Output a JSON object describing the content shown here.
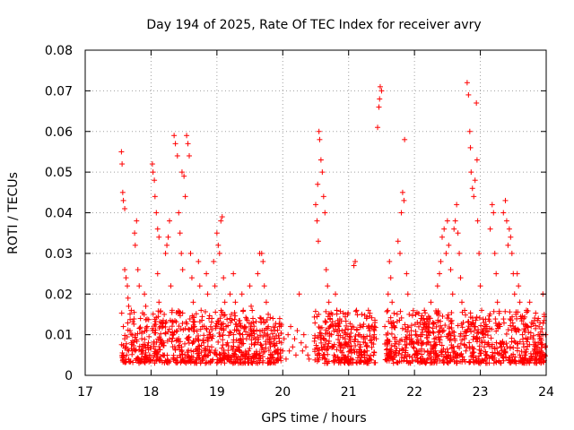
{
  "chart_data": {
    "type": "scatter",
    "title": "Day 194 of 2025, Rate Of TEC Index for receiver avry",
    "xlabel": "GPS time / hours",
    "ylabel": "ROTI / TECUs",
    "xlim": [
      17,
      24
    ],
    "ylim": [
      0,
      0.08
    ],
    "x_ticks": [
      17,
      18,
      19,
      20,
      21,
      22,
      23,
      24
    ],
    "y_ticks": [
      0,
      0.01,
      0.02,
      0.03,
      0.04,
      0.05,
      0.06,
      0.07,
      0.08
    ],
    "x_tick_labels": [
      "17",
      "18",
      "19",
      "20",
      "21",
      "22",
      "23",
      "24"
    ],
    "y_tick_labels": [
      "0",
      "0.01",
      "0.02",
      "0.03",
      "0.04",
      "0.05",
      "0.06",
      "0.07",
      "0.08"
    ],
    "grid": true,
    "marker": "plus",
    "marker_color": "#ff0000",
    "series": [
      {
        "name": "ROTI",
        "points": [
          [
            17.55,
            0.055
          ],
          [
            17.56,
            0.052
          ],
          [
            17.57,
            0.045
          ],
          [
            17.58,
            0.043
          ],
          [
            17.6,
            0.041
          ],
          [
            17.6,
            0.026
          ],
          [
            17.62,
            0.024
          ],
          [
            17.64,
            0.022
          ],
          [
            17.65,
            0.019
          ],
          [
            17.66,
            0.017
          ],
          [
            17.7,
            0.016
          ],
          [
            17.58,
            0.012
          ],
          [
            17.6,
            0.009
          ],
          [
            17.62,
            0.007
          ],
          [
            17.63,
            0.005
          ],
          [
            17.66,
            0.004
          ],
          [
            17.68,
            0.011
          ],
          [
            17.7,
            0.008
          ],
          [
            17.72,
            0.006
          ],
          [
            17.75,
            0.035
          ],
          [
            17.76,
            0.032
          ],
          [
            17.78,
            0.038
          ],
          [
            17.8,
            0.026
          ],
          [
            17.82,
            0.022
          ],
          [
            17.84,
            0.014
          ],
          [
            17.86,
            0.009
          ],
          [
            17.88,
            0.006
          ],
          [
            17.9,
            0.02
          ],
          [
            17.92,
            0.017
          ],
          [
            17.94,
            0.012
          ],
          [
            17.96,
            0.008
          ],
          [
            17.98,
            0.005
          ],
          [
            18.02,
            0.052
          ],
          [
            18.03,
            0.05
          ],
          [
            18.05,
            0.048
          ],
          [
            18.06,
            0.044
          ],
          [
            18.08,
            0.04
          ],
          [
            18.1,
            0.036
          ],
          [
            18.12,
            0.034
          ],
          [
            18.1,
            0.025
          ],
          [
            18.12,
            0.018
          ],
          [
            18.14,
            0.012
          ],
          [
            18.16,
            0.008
          ],
          [
            18.18,
            0.005
          ],
          [
            18.2,
            0.015
          ],
          [
            18.22,
            0.03
          ],
          [
            18.24,
            0.032
          ],
          [
            18.26,
            0.034
          ],
          [
            18.28,
            0.038
          ],
          [
            18.3,
            0.022
          ],
          [
            18.32,
            0.016
          ],
          [
            18.34,
            0.01
          ],
          [
            18.36,
            0.007
          ],
          [
            18.35,
            0.059
          ],
          [
            18.37,
            0.057
          ],
          [
            18.4,
            0.054
          ],
          [
            18.42,
            0.04
          ],
          [
            18.44,
            0.035
          ],
          [
            18.46,
            0.03
          ],
          [
            18.48,
            0.026
          ],
          [
            18.47,
            0.05
          ],
          [
            18.5,
            0.049
          ],
          [
            18.52,
            0.044
          ],
          [
            18.54,
            0.059
          ],
          [
            18.56,
            0.057
          ],
          [
            18.58,
            0.054
          ],
          [
            18.6,
            0.03
          ],
          [
            18.62,
            0.024
          ],
          [
            18.64,
            0.018
          ],
          [
            18.66,
            0.012
          ],
          [
            18.68,
            0.009
          ],
          [
            18.7,
            0.006
          ],
          [
            18.72,
            0.028
          ],
          [
            18.74,
            0.022
          ],
          [
            18.76,
            0.016
          ],
          [
            18.78,
            0.012
          ],
          [
            18.8,
            0.008
          ],
          [
            18.82,
            0.005
          ],
          [
            18.84,
            0.025
          ],
          [
            18.86,
            0.02
          ],
          [
            18.88,
            0.014
          ],
          [
            18.9,
            0.01
          ],
          [
            18.92,
            0.007
          ],
          [
            18.95,
            0.028
          ],
          [
            18.97,
            0.022
          ],
          [
            19.0,
            0.035
          ],
          [
            19.02,
            0.032
          ],
          [
            19.04,
            0.03
          ],
          [
            19.06,
            0.038
          ],
          [
            19.08,
            0.039
          ],
          [
            19.1,
            0.024
          ],
          [
            19.12,
            0.018
          ],
          [
            19.14,
            0.012
          ],
          [
            19.16,
            0.008
          ],
          [
            19.18,
            0.005
          ],
          [
            19.2,
            0.02
          ],
          [
            19.22,
            0.015
          ],
          [
            19.25,
            0.025
          ],
          [
            19.28,
            0.018
          ],
          [
            19.3,
            0.011
          ],
          [
            19.32,
            0.007
          ],
          [
            19.35,
            0.004
          ],
          [
            19.38,
            0.02
          ],
          [
            19.4,
            0.016
          ],
          [
            19.42,
            0.012
          ],
          [
            19.45,
            0.009
          ],
          [
            19.48,
            0.006
          ],
          [
            19.5,
            0.022
          ],
          [
            19.52,
            0.017
          ],
          [
            19.55,
            0.013
          ],
          [
            19.58,
            0.008
          ],
          [
            19.6,
            0.005
          ],
          [
            19.62,
            0.025
          ],
          [
            19.65,
            0.03
          ],
          [
            19.68,
            0.03
          ],
          [
            19.7,
            0.028
          ],
          [
            19.72,
            0.022
          ],
          [
            19.75,
            0.018
          ],
          [
            19.78,
            0.012
          ],
          [
            19.8,
            0.008
          ],
          [
            19.82,
            0.005
          ],
          [
            19.85,
            0.014
          ],
          [
            19.88,
            0.009
          ],
          [
            19.9,
            0.006
          ],
          [
            19.92,
            0.004
          ],
          [
            19.95,
            0.012
          ],
          [
            19.98,
            0.008
          ],
          [
            20.0,
            0.006
          ],
          [
            20.02,
            0.009
          ],
          [
            20.05,
            0.004
          ],
          [
            20.08,
            0.01
          ],
          [
            20.1,
            0.006
          ],
          [
            20.12,
            0.012
          ],
          [
            20.15,
            0.007
          ],
          [
            20.18,
            0.009
          ],
          [
            20.2,
            0.005
          ],
          [
            20.22,
            0.011
          ],
          [
            20.25,
            0.02
          ],
          [
            20.28,
            0.008
          ],
          [
            20.3,
            0.006
          ],
          [
            20.32,
            0.01
          ],
          [
            20.35,
            0.007
          ],
          [
            20.38,
            0.005
          ],
          [
            20.4,
            0.004
          ],
          [
            20.5,
            0.042
          ],
          [
            20.52,
            0.038
          ],
          [
            20.53,
            0.047
          ],
          [
            20.54,
            0.033
          ],
          [
            20.55,
            0.06
          ],
          [
            20.56,
            0.058
          ],
          [
            20.58,
            0.053
          ],
          [
            20.6,
            0.05
          ],
          [
            20.62,
            0.044
          ],
          [
            20.64,
            0.04
          ],
          [
            20.66,
            0.026
          ],
          [
            20.68,
            0.022
          ],
          [
            20.7,
            0.018
          ],
          [
            20.72,
            0.014
          ],
          [
            20.74,
            0.01
          ],
          [
            20.76,
            0.007
          ],
          [
            20.78,
            0.005
          ],
          [
            20.8,
            0.02
          ],
          [
            20.82,
            0.016
          ],
          [
            20.84,
            0.012
          ],
          [
            20.86,
            0.008
          ],
          [
            20.88,
            0.006
          ],
          [
            20.9,
            0.004
          ],
          [
            20.95,
            0.015
          ],
          [
            20.98,
            0.01
          ],
          [
            21.0,
            0.008
          ],
          [
            21.02,
            0.006
          ],
          [
            21.05,
            0.012
          ],
          [
            21.08,
            0.027
          ],
          [
            21.1,
            0.028
          ],
          [
            21.12,
            0.016
          ],
          [
            21.15,
            0.01
          ],
          [
            21.18,
            0.007
          ],
          [
            21.2,
            0.005
          ],
          [
            21.22,
            0.012
          ],
          [
            21.25,
            0.009
          ],
          [
            21.28,
            0.006
          ],
          [
            21.3,
            0.016
          ],
          [
            21.32,
            0.011
          ],
          [
            21.35,
            0.008
          ],
          [
            21.38,
            0.005
          ],
          [
            21.4,
            0.013
          ],
          [
            21.42,
            0.009
          ],
          [
            21.44,
            0.061
          ],
          [
            21.46,
            0.066
          ],
          [
            21.47,
            0.068
          ],
          [
            21.48,
            0.071
          ],
          [
            21.5,
            0.07
          ],
          [
            21.55,
            0.012
          ],
          [
            21.58,
            0.008
          ],
          [
            21.6,
            0.02
          ],
          [
            21.62,
            0.028
          ],
          [
            21.64,
            0.024
          ],
          [
            21.66,
            0.018
          ],
          [
            21.68,
            0.013
          ],
          [
            21.7,
            0.009
          ],
          [
            21.72,
            0.006
          ],
          [
            21.75,
            0.033
          ],
          [
            21.78,
            0.03
          ],
          [
            21.8,
            0.04
          ],
          [
            21.82,
            0.045
          ],
          [
            21.84,
            0.043
          ],
          [
            21.85,
            0.058
          ],
          [
            21.88,
            0.025
          ],
          [
            21.9,
            0.02
          ],
          [
            21.92,
            0.015
          ],
          [
            21.95,
            0.011
          ],
          [
            21.98,
            0.007
          ],
          [
            22.0,
            0.005
          ],
          [
            22.02,
            0.01
          ],
          [
            22.05,
            0.008
          ],
          [
            22.08,
            0.006
          ],
          [
            22.1,
            0.014
          ],
          [
            22.12,
            0.01
          ],
          [
            22.15,
            0.016
          ],
          [
            22.18,
            0.012
          ],
          [
            22.2,
            0.008
          ],
          [
            22.22,
            0.005
          ],
          [
            22.25,
            0.018
          ],
          [
            22.28,
            0.013
          ],
          [
            22.3,
            0.009
          ],
          [
            22.32,
            0.006
          ],
          [
            22.35,
            0.022
          ],
          [
            22.38,
            0.025
          ],
          [
            22.4,
            0.028
          ],
          [
            22.42,
            0.034
          ],
          [
            22.45,
            0.036
          ],
          [
            22.48,
            0.03
          ],
          [
            22.5,
            0.038
          ],
          [
            22.52,
            0.032
          ],
          [
            22.55,
            0.026
          ],
          [
            22.58,
            0.02
          ],
          [
            22.6,
            0.036
          ],
          [
            22.62,
            0.038
          ],
          [
            22.64,
            0.042
          ],
          [
            22.66,
            0.035
          ],
          [
            22.68,
            0.03
          ],
          [
            22.7,
            0.024
          ],
          [
            22.72,
            0.018
          ],
          [
            22.74,
            0.013
          ],
          [
            22.76,
            0.009
          ],
          [
            22.78,
            0.006
          ],
          [
            22.8,
            0.072
          ],
          [
            22.82,
            0.069
          ],
          [
            22.84,
            0.06
          ],
          [
            22.85,
            0.056
          ],
          [
            22.86,
            0.05
          ],
          [
            22.88,
            0.046
          ],
          [
            22.9,
            0.044
          ],
          [
            22.92,
            0.048
          ],
          [
            22.94,
            0.067
          ],
          [
            22.95,
            0.053
          ],
          [
            22.96,
            0.038
          ],
          [
            22.98,
            0.03
          ],
          [
            23.0,
            0.022
          ],
          [
            23.02,
            0.016
          ],
          [
            23.04,
            0.011
          ],
          [
            23.06,
            0.007
          ],
          [
            23.08,
            0.005
          ],
          [
            23.1,
            0.012
          ],
          [
            23.12,
            0.008
          ],
          [
            23.15,
            0.036
          ],
          [
            23.18,
            0.042
          ],
          [
            23.2,
            0.04
          ],
          [
            23.22,
            0.03
          ],
          [
            23.24,
            0.025
          ],
          [
            23.26,
            0.018
          ],
          [
            23.28,
            0.012
          ],
          [
            23.3,
            0.008
          ],
          [
            23.32,
            0.005
          ],
          [
            23.35,
            0.04
          ],
          [
            23.38,
            0.043
          ],
          [
            23.4,
            0.038
          ],
          [
            23.42,
            0.032
          ],
          [
            23.44,
            0.036
          ],
          [
            23.46,
            0.034
          ],
          [
            23.48,
            0.03
          ],
          [
            23.5,
            0.025
          ],
          [
            23.52,
            0.02
          ],
          [
            23.54,
            0.015
          ],
          [
            23.56,
            0.025
          ],
          [
            23.58,
            0.022
          ],
          [
            23.6,
            0.018
          ],
          [
            23.62,
            0.014
          ],
          [
            23.64,
            0.01
          ],
          [
            23.66,
            0.007
          ],
          [
            23.68,
            0.005
          ],
          [
            23.7,
            0.016
          ],
          [
            23.72,
            0.012
          ],
          [
            23.75,
            0.018
          ],
          [
            23.78,
            0.013
          ],
          [
            23.8,
            0.009
          ],
          [
            23.82,
            0.006
          ],
          [
            23.85,
            0.004
          ],
          [
            23.88,
            0.014
          ],
          [
            23.9,
            0.009
          ],
          [
            23.92,
            0.006
          ],
          [
            23.95,
            0.02
          ],
          [
            23.97,
            0.015
          ],
          [
            23.99,
            0.01
          ]
        ]
      }
    ],
    "dense_band": {
      "x_segments": [
        [
          17.55,
          19.98
        ],
        [
          20.48,
          21.42
        ],
        [
          21.55,
          23.99
        ]
      ],
      "y_range": [
        0.003,
        0.016
      ]
    }
  }
}
